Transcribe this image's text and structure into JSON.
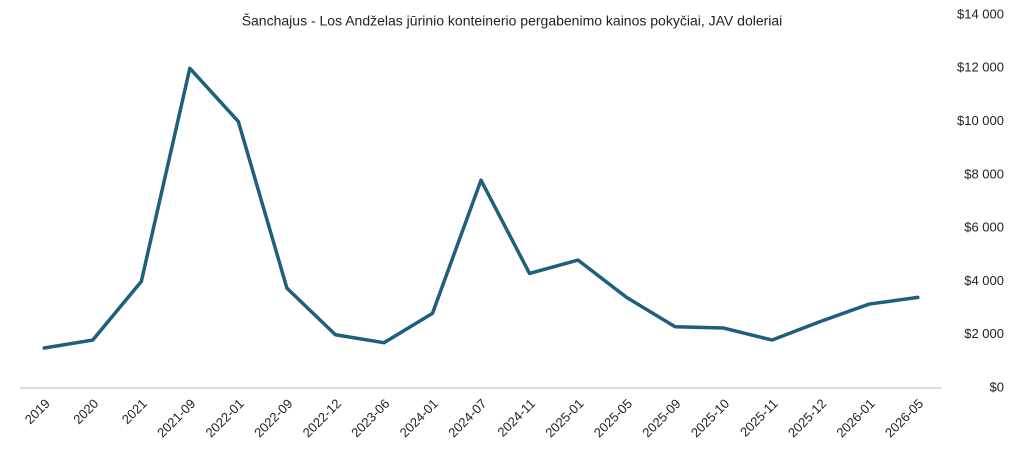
{
  "chart_data": {
    "type": "line",
    "title": "Šanchajus - Los Andželas jūrinio konteinerio pergabenimo kainos pokyčiai, JAV doleriai",
    "categories": [
      "2019",
      "2020",
      "2021",
      "2021-09",
      "2022-01",
      "2022-09",
      "2022-12",
      "2023-06",
      "2024-01",
      "2024-07",
      "2024-11",
      "2025-01",
      "2025-05",
      "2025-09",
      "2025-10",
      "2025-11",
      "2025-12",
      "2026-01",
      "2026-05"
    ],
    "series": [
      {
        "color": "#1d5f7d",
        "values": [
          1500,
          1800,
          4000,
          12000,
          10000,
          3750,
          2000,
          1700,
          2800,
          7800,
          4300,
          4800,
          3400,
          2300,
          2250,
          1800,
          2500,
          3150,
          3400
        ]
      }
    ],
    "ylim": [
      0,
      14000
    ],
    "yticks": [
      {
        "value": 0,
        "label": "$0"
      },
      {
        "value": 2000,
        "label": "$2 000"
      },
      {
        "value": 4000,
        "label": "$4 000"
      },
      {
        "value": 6000,
        "label": "$6 000"
      },
      {
        "value": 8000,
        "label": "$8 000"
      },
      {
        "value": 10000,
        "label": "$10 000"
      },
      {
        "value": 12000,
        "label": "$12 000"
      },
      {
        "value": 14000,
        "label": "$14 000"
      }
    ],
    "y_axis_side": "right",
    "grid": false
  }
}
